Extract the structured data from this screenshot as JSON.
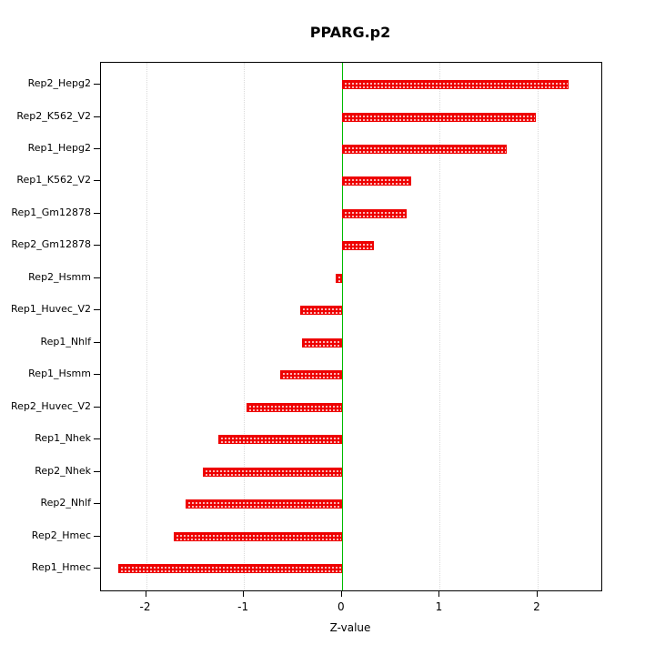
{
  "chart_data": {
    "type": "bar",
    "orientation": "horizontal",
    "title": "PPARG.p2",
    "xlabel": "Z-value",
    "categories": [
      "Rep2_Hepg2",
      "Rep2_K562_V2",
      "Rep1_Hepg2",
      "Rep1_K562_V2",
      "Rep1_Gm12878",
      "Rep2_Gm12878",
      "Rep2_Hsmm",
      "Rep1_Huvec_V2",
      "Rep1_Nhlf",
      "Rep1_Hsmm",
      "Rep2_Huvec_V2",
      "Rep1_Nhek",
      "Rep2_Nhek",
      "Rep2_Nhlf",
      "Rep2_Hmec",
      "Rep1_Hmec"
    ],
    "values": [
      2.32,
      1.98,
      1.68,
      0.71,
      0.66,
      0.33,
      -0.06,
      -0.43,
      -0.41,
      -0.63,
      -0.97,
      -1.26,
      -1.42,
      -1.6,
      -1.72,
      -2.28
    ],
    "xlim": [
      -2.46,
      2.65
    ],
    "xticks": [
      -2,
      -1,
      0,
      1,
      2
    ],
    "xtick_labels": [
      "-2",
      "-1",
      "0",
      "1",
      "2"
    ],
    "bar_color": "#ee0000",
    "zero_line_color": "#00bb00",
    "grid": true,
    "legend": "none"
  }
}
